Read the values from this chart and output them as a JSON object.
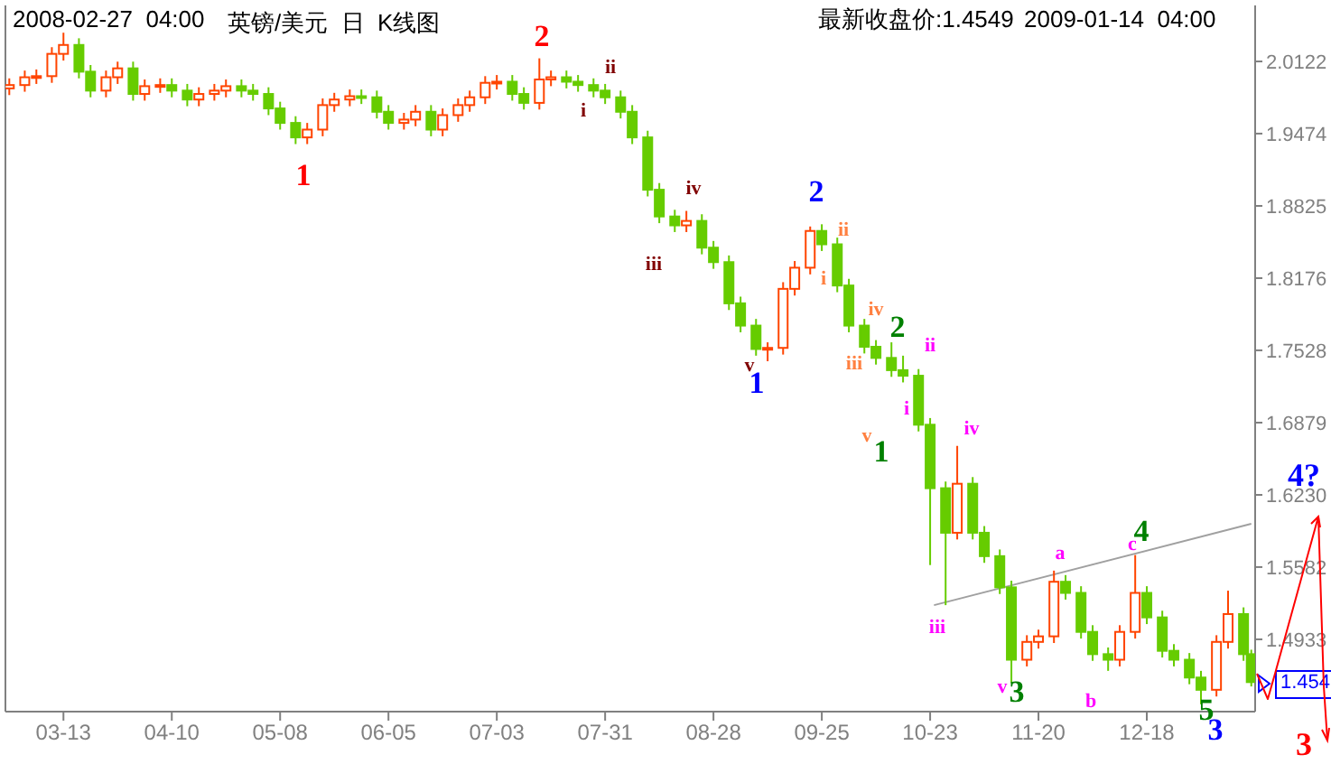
{
  "chart_data": {
    "type": "candlestick",
    "title": "英镑/美元  日  K线图",
    "x": [
      "2008-02-28",
      "2008-03-03",
      "2008-03-06",
      "2008-03-10",
      "2008-03-13",
      "2008-03-17",
      "2008-03-20",
      "2008-03-24",
      "2008-03-27",
      "2008-03-31",
      "2008-04-03",
      "2008-04-07",
      "2008-04-10",
      "2008-04-14",
      "2008-04-17",
      "2008-04-21",
      "2008-04-24",
      "2008-04-28",
      "2008-05-01",
      "2008-05-05",
      "2008-05-08",
      "2008-05-12",
      "2008-05-15",
      "2008-05-19",
      "2008-05-22",
      "2008-05-26",
      "2008-05-29",
      "2008-06-02",
      "2008-06-05",
      "2008-06-09",
      "2008-06-12",
      "2008-06-16",
      "2008-06-19",
      "2008-06-23",
      "2008-06-26",
      "2008-06-30",
      "2008-07-03",
      "2008-07-07",
      "2008-07-10",
      "2008-07-14",
      "2008-07-17",
      "2008-07-21",
      "2008-07-24",
      "2008-07-28",
      "2008-07-31",
      "2008-08-04",
      "2008-08-07",
      "2008-08-11",
      "2008-08-14",
      "2008-08-18",
      "2008-08-21",
      "2008-08-25",
      "2008-08-28",
      "2008-09-01",
      "2008-09-04",
      "2008-09-08",
      "2008-09-11",
      "2008-09-15",
      "2008-09-18",
      "2008-09-22",
      "2008-09-25",
      "2008-09-29",
      "2008-10-02",
      "2008-10-06",
      "2008-10-09",
      "2008-10-13",
      "2008-10-16",
      "2008-10-20",
      "2008-10-23",
      "2008-10-27",
      "2008-10-30",
      "2008-11-03",
      "2008-11-06",
      "2008-11-10",
      "2008-11-13",
      "2008-11-17",
      "2008-11-20",
      "2008-11-24",
      "2008-11-27",
      "2008-12-01",
      "2008-12-04",
      "2008-12-08",
      "2008-12-11",
      "2008-12-15",
      "2008-12-18",
      "2008-12-22",
      "2008-12-25",
      "2008-12-29",
      "2009-01-01",
      "2009-01-05",
      "2009-01-08",
      "2009-01-12",
      "2009-01-14"
    ],
    "ohlc": [
      [
        1.988,
        1.997,
        1.982,
        1.991
      ],
      [
        1.991,
        2.004,
        1.985,
        1.998
      ],
      [
        1.998,
        2.005,
        1.992,
        1.999
      ],
      [
        1.999,
        2.025,
        1.993,
        2.019
      ],
      [
        2.019,
        2.038,
        2.013,
        2.027
      ],
      [
        2.027,
        2.033,
        1.997,
        2.003
      ],
      [
        2.003,
        2.009,
        1.98,
        1.986
      ],
      [
        1.986,
        2.004,
        1.98,
        1.998
      ],
      [
        1.998,
        2.012,
        1.992,
        2.006
      ],
      [
        2.006,
        2.012,
        1.977,
        1.983
      ],
      [
        1.983,
        1.996,
        1.977,
        1.99
      ],
      [
        1.99,
        1.997,
        1.984,
        1.991
      ],
      [
        1.991,
        1.997,
        1.98,
        1.986
      ],
      [
        1.986,
        1.992,
        1.972,
        1.978
      ],
      [
        1.978,
        1.989,
        1.972,
        1.983
      ],
      [
        1.983,
        1.992,
        1.977,
        1.986
      ],
      [
        1.986,
        1.996,
        1.98,
        1.99
      ],
      [
        1.99,
        1.996,
        1.98,
        1.986
      ],
      [
        1.986,
        1.992,
        1.977,
        1.983
      ],
      [
        1.983,
        1.989,
        1.964,
        1.97
      ],
      [
        1.97,
        1.976,
        1.951,
        1.957
      ],
      [
        1.957,
        1.963,
        1.938,
        1.944
      ],
      [
        1.944,
        1.957,
        1.938,
        1.951
      ],
      [
        1.951,
        1.979,
        1.945,
        1.973
      ],
      [
        1.973,
        1.984,
        1.967,
        1.978
      ],
      [
        1.978,
        1.987,
        1.972,
        1.981
      ],
      [
        1.981,
        1.987,
        1.974,
        1.98
      ],
      [
        1.98,
        1.986,
        1.961,
        1.967
      ],
      [
        1.967,
        1.973,
        1.951,
        1.957
      ],
      [
        1.957,
        1.966,
        1.951,
        1.96
      ],
      [
        1.96,
        1.973,
        1.954,
        1.967
      ],
      [
        1.967,
        1.973,
        1.945,
        1.951
      ],
      [
        1.951,
        1.97,
        1.945,
        1.964
      ],
      [
        1.964,
        1.979,
        1.958,
        1.973
      ],
      [
        1.973,
        1.986,
        1.967,
        1.98
      ],
      [
        1.98,
        1.999,
        1.974,
        1.993
      ],
      [
        1.993,
        2,
        1.987,
        1.994
      ],
      [
        1.994,
        2,
        1.977,
        1.983
      ],
      [
        1.983,
        1.989,
        1.969,
        1.975
      ],
      [
        1.975,
        2.015,
        1.969,
        1.996
      ],
      [
        1.996,
        2.004,
        1.99,
        1.998
      ],
      [
        1.998,
        2.004,
        1.988,
        1.994
      ],
      [
        1.994,
        2,
        1.985,
        1.991
      ],
      [
        1.991,
        1.997,
        1.98,
        1.986
      ],
      [
        1.986,
        1.992,
        1.974,
        1.98
      ],
      [
        1.98,
        1.986,
        1.961,
        1.967
      ],
      [
        1.967,
        1.973,
        1.938,
        1.944
      ],
      [
        1.944,
        1.95,
        1.891,
        1.897
      ],
      [
        1.897,
        1.903,
        1.867,
        1.873
      ],
      [
        1.873,
        1.879,
        1.859,
        1.865
      ],
      [
        1.865,
        1.878,
        1.859,
        1.869
      ],
      [
        1.869,
        1.875,
        1.839,
        1.845
      ],
      [
        1.845,
        1.851,
        1.826,
        1.832
      ],
      [
        1.832,
        1.838,
        1.789,
        1.795
      ],
      [
        1.795,
        1.801,
        1.769,
        1.775
      ],
      [
        1.775,
        1.781,
        1.748,
        1.754
      ],
      [
        1.754,
        1.76,
        1.743,
        1.755
      ],
      [
        1.755,
        1.814,
        1.749,
        1.808
      ],
      [
        1.808,
        1.833,
        1.802,
        1.827
      ],
      [
        1.827,
        1.864,
        1.821,
        1.86
      ],
      [
        1.86,
        1.866,
        1.842,
        1.848
      ],
      [
        1.848,
        1.854,
        1.805,
        1.811
      ],
      [
        1.811,
        1.817,
        1.769,
        1.775
      ],
      [
        1.775,
        1.781,
        1.75,
        1.756
      ],
      [
        1.756,
        1.762,
        1.74,
        1.746
      ],
      [
        1.746,
        1.76,
        1.729,
        1.735
      ],
      [
        1.735,
        1.748,
        1.724,
        1.73
      ],
      [
        1.73,
        1.736,
        1.68,
        1.686
      ],
      [
        1.686,
        1.692,
        1.56,
        1.629
      ],
      [
        1.629,
        1.635,
        1.524,
        1.589
      ],
      [
        1.589,
        1.667,
        1.583,
        1.633
      ],
      [
        1.633,
        1.639,
        1.583,
        1.589
      ],
      [
        1.589,
        1.595,
        1.562,
        1.568
      ],
      [
        1.568,
        1.574,
        1.534,
        1.54
      ],
      [
        1.54,
        1.546,
        1.454,
        1.475
      ],
      [
        1.475,
        1.497,
        1.469,
        1.491
      ],
      [
        1.491,
        1.502,
        1.485,
        1.496
      ],
      [
        1.496,
        1.555,
        1.49,
        1.545
      ],
      [
        1.545,
        1.551,
        1.529,
        1.535
      ],
      [
        1.535,
        1.541,
        1.494,
        1.5
      ],
      [
        1.5,
        1.506,
        1.474,
        1.48
      ],
      [
        1.48,
        1.486,
        1.465,
        1.475
      ],
      [
        1.475,
        1.506,
        1.469,
        1.5
      ],
      [
        1.5,
        1.569,
        1.494,
        1.535
      ],
      [
        1.535,
        1.541,
        1.507,
        1.513
      ],
      [
        1.513,
        1.519,
        1.477,
        1.483
      ],
      [
        1.483,
        1.489,
        1.469,
        1.475
      ],
      [
        1.475,
        1.481,
        1.453,
        1.459
      ],
      [
        1.459,
        1.465,
        1.435,
        1.448
      ],
      [
        1.448,
        1.497,
        1.442,
        1.491
      ],
      [
        1.491,
        1.537,
        1.485,
        1.516
      ],
      [
        1.516,
        1.522,
        1.474,
        1.48
      ],
      [
        1.48,
        1.484,
        1.451,
        1.4549
      ]
    ],
    "series": [
      {
        "type": "line",
        "x": [
          "2008-10-24",
          "2009-01-14"
        ],
        "values": [
          1.524,
          1.597
        ],
        "color": "#a0a0a0"
      }
    ],
    "xlim": [
      "2008-02-27",
      "2009-01-15"
    ],
    "xticks": [
      {
        "value": "2008-03-13",
        "label": "03-13"
      },
      {
        "value": "2008-04-10",
        "label": "04-10"
      },
      {
        "value": "2008-05-08",
        "label": "05-08"
      },
      {
        "value": "2008-06-05",
        "label": "06-05"
      },
      {
        "value": "2008-07-03",
        "label": "07-03"
      },
      {
        "value": "2008-07-31",
        "label": "07-31"
      },
      {
        "value": "2008-08-28",
        "label": "08-28"
      },
      {
        "value": "2008-09-25",
        "label": "09-25"
      },
      {
        "value": "2008-10-23",
        "label": "10-23"
      },
      {
        "value": "2008-11-20",
        "label": "11-20"
      },
      {
        "value": "2008-12-18",
        "label": "12-18"
      }
    ],
    "ylim": [
      1.4284,
      2.0625
    ],
    "yticks": [
      1.4933,
      1.5582,
      {
        "value": 1.623,
        "label": "1.6230"
      },
      1.6879,
      1.7528,
      1.8176,
      1.8825,
      1.9474,
      2.0122
    ],
    "annotations": [
      "2008-02-27  04:00",
      "最新收盘价:1.4549",
      "2009-01-14  04:00",
      "4?",
      "3",
      "1.454",
      "1",
      "2",
      "i",
      "ii",
      "iii",
      "iv",
      "v",
      "1",
      "2",
      "ii",
      "i",
      "iv",
      "iii",
      "v",
      "2",
      "1",
      "ii",
      "i",
      "iv",
      "iii",
      "v",
      "3",
      "a",
      "b",
      "c",
      "4",
      "5",
      "3"
    ]
  }
}
